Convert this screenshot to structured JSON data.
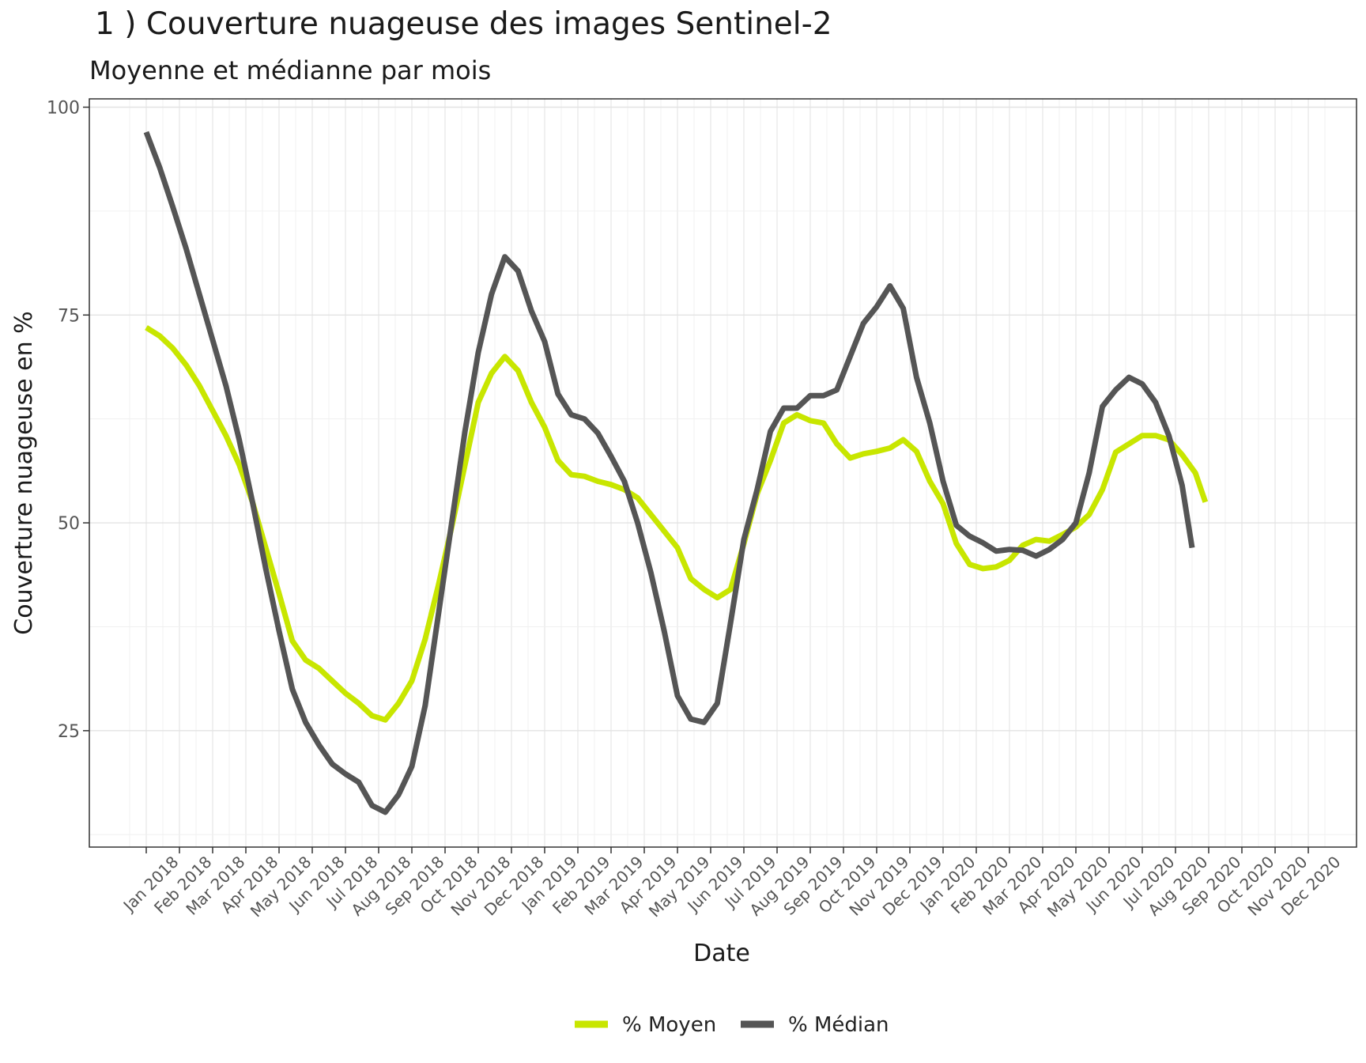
{
  "chart_data": {
    "type": "line",
    "title": "1 ) Couverture nuageuse des images Sentinel-2",
    "subtitle": "Moyenne et médianne par mois",
    "xlabel": "Date",
    "ylabel": "Couverture nuageuse en %",
    "ylim": [
      11,
      101
    ],
    "yticks": [
      25,
      50,
      75,
      100
    ],
    "grid": true,
    "legend_position": "bottom",
    "x_labels": [
      "Jan 2018",
      "Feb 2018",
      "Mar 2018",
      "Apr 2018",
      "May 2018",
      "Jun 2018",
      "Jul 2018",
      "Aug 2018",
      "Sep 2018",
      "Oct 2018",
      "Nov 2018",
      "Dec 2018",
      "Jan 2019",
      "Feb 2019",
      "Mar 2019",
      "Apr 2019",
      "May 2019",
      "Jun 2019",
      "Jul 2019",
      "Aug 2019",
      "Sep 2019",
      "Oct 2019",
      "Nov 2019",
      "Dec 2019",
      "Jan 2020",
      "Feb 2020",
      "Mar 2020",
      "Apr 2020",
      "May 2020",
      "Jun 2020",
      "Jul 2020",
      "Aug 2020",
      "Sep 2020",
      "Oct 2020",
      "Nov 2020",
      "Dec 2020"
    ],
    "series": [
      {
        "name": "% Moyen",
        "color": "#c8e600",
        "points": [
          [
            0,
            73.5
          ],
          [
            0.4,
            72.5
          ],
          [
            0.8,
            71
          ],
          [
            1.2,
            69
          ],
          [
            1.6,
            66.5
          ],
          [
            2,
            63.5
          ],
          [
            2.4,
            60.5
          ],
          [
            2.8,
            57
          ],
          [
            3.2,
            52.5
          ],
          [
            3.6,
            47
          ],
          [
            4,
            41.5
          ],
          [
            4.4,
            35.8
          ],
          [
            4.8,
            33.5
          ],
          [
            5.2,
            32.5
          ],
          [
            5.6,
            31
          ],
          [
            6,
            29.5
          ],
          [
            6.4,
            28.3
          ],
          [
            6.8,
            26.8
          ],
          [
            7.2,
            26.3
          ],
          [
            7.6,
            28.3
          ],
          [
            8,
            31
          ],
          [
            8.4,
            36
          ],
          [
            8.8,
            42.5
          ],
          [
            9.2,
            49.5
          ],
          [
            9.6,
            57
          ],
          [
            10,
            64.5
          ],
          [
            10.4,
            68
          ],
          [
            10.8,
            70
          ],
          [
            11.2,
            68.3
          ],
          [
            11.6,
            64.5
          ],
          [
            12,
            61.5
          ],
          [
            12.4,
            57.5
          ],
          [
            12.8,
            55.8
          ],
          [
            13.2,
            55.6
          ],
          [
            13.6,
            55
          ],
          [
            14,
            54.6
          ],
          [
            14.4,
            54
          ],
          [
            14.8,
            53
          ],
          [
            15.2,
            51
          ],
          [
            15.6,
            49
          ],
          [
            16,
            47
          ],
          [
            16.4,
            43.3
          ],
          [
            16.8,
            42
          ],
          [
            17.2,
            41
          ],
          [
            17.6,
            42
          ],
          [
            18,
            47.5
          ],
          [
            18.4,
            53.5
          ],
          [
            18.8,
            57.5
          ],
          [
            19.2,
            62
          ],
          [
            19.6,
            63
          ],
          [
            20,
            62.3
          ],
          [
            20.4,
            62
          ],
          [
            20.8,
            59.5
          ],
          [
            21.2,
            57.8
          ],
          [
            21.6,
            58.3
          ],
          [
            22,
            58.6
          ],
          [
            22.4,
            59
          ],
          [
            22.8,
            60
          ],
          [
            23.2,
            58.6
          ],
          [
            23.6,
            55
          ],
          [
            24,
            52.3
          ],
          [
            24.4,
            47.5
          ],
          [
            24.8,
            45
          ],
          [
            25.2,
            44.5
          ],
          [
            25.6,
            44.7
          ],
          [
            26,
            45.5
          ],
          [
            26.4,
            47.3
          ],
          [
            26.8,
            48
          ],
          [
            27.2,
            47.8
          ],
          [
            27.6,
            48.6
          ],
          [
            28,
            49.5
          ],
          [
            28.4,
            51
          ],
          [
            28.8,
            54
          ],
          [
            29.2,
            58.5
          ],
          [
            29.6,
            59.5
          ],
          [
            30,
            60.5
          ],
          [
            30.4,
            60.5
          ],
          [
            30.8,
            60
          ],
          [
            31.2,
            58.2
          ],
          [
            31.6,
            56
          ],
          [
            31.9,
            52.5
          ]
        ]
      },
      {
        "name": "% Médian",
        "color": "#555555",
        "points": [
          [
            0,
            97
          ],
          [
            0.4,
            92.8
          ],
          [
            0.8,
            88
          ],
          [
            1.2,
            83
          ],
          [
            1.6,
            77.5
          ],
          [
            2,
            72
          ],
          [
            2.4,
            66.5
          ],
          [
            2.8,
            60
          ],
          [
            3.2,
            52.5
          ],
          [
            3.6,
            44.5
          ],
          [
            4,
            37
          ],
          [
            4.4,
            30
          ],
          [
            4.8,
            26
          ],
          [
            5.2,
            23.3
          ],
          [
            5.6,
            21
          ],
          [
            6,
            19.8
          ],
          [
            6.4,
            18.8
          ],
          [
            6.8,
            16
          ],
          [
            7.2,
            15.2
          ],
          [
            7.6,
            17.3
          ],
          [
            8,
            20.7
          ],
          [
            8.4,
            28
          ],
          [
            8.8,
            39
          ],
          [
            9.2,
            50
          ],
          [
            9.6,
            61
          ],
          [
            10,
            70.5
          ],
          [
            10.4,
            77.5
          ],
          [
            10.8,
            82
          ],
          [
            11.2,
            80.3
          ],
          [
            11.6,
            75.5
          ],
          [
            12,
            71.8
          ],
          [
            12.4,
            65.5
          ],
          [
            12.8,
            63
          ],
          [
            13.2,
            62.5
          ],
          [
            13.6,
            60.8
          ],
          [
            14,
            58
          ],
          [
            14.4,
            55
          ],
          [
            14.8,
            50
          ],
          [
            15.2,
            44
          ],
          [
            15.6,
            37
          ],
          [
            16,
            29.2
          ],
          [
            16.4,
            26.4
          ],
          [
            16.8,
            26
          ],
          [
            17.2,
            28.3
          ],
          [
            17.6,
            38
          ],
          [
            18,
            48
          ],
          [
            18.4,
            54
          ],
          [
            18.8,
            61
          ],
          [
            19.2,
            63.8
          ],
          [
            19.6,
            63.8
          ],
          [
            20,
            65.3
          ],
          [
            20.4,
            65.3
          ],
          [
            20.8,
            66
          ],
          [
            21.2,
            70
          ],
          [
            21.6,
            74
          ],
          [
            22,
            76
          ],
          [
            22.4,
            78.5
          ],
          [
            22.8,
            75.8
          ],
          [
            23.2,
            67.5
          ],
          [
            23.6,
            62
          ],
          [
            24,
            55
          ],
          [
            24.4,
            49.7
          ],
          [
            24.8,
            48.4
          ],
          [
            25.2,
            47.6
          ],
          [
            25.6,
            46.6
          ],
          [
            26,
            46.8
          ],
          [
            26.4,
            46.7
          ],
          [
            26.8,
            46
          ],
          [
            27.2,
            46.8
          ],
          [
            27.6,
            48
          ],
          [
            28,
            50
          ],
          [
            28.4,
            56
          ],
          [
            28.8,
            64
          ],
          [
            29.2,
            66
          ],
          [
            29.6,
            67.5
          ],
          [
            30,
            66.7
          ],
          [
            30.4,
            64.5
          ],
          [
            30.8,
            60.5
          ],
          [
            31.2,
            54.5
          ],
          [
            31.5,
            47
          ]
        ]
      }
    ]
  }
}
